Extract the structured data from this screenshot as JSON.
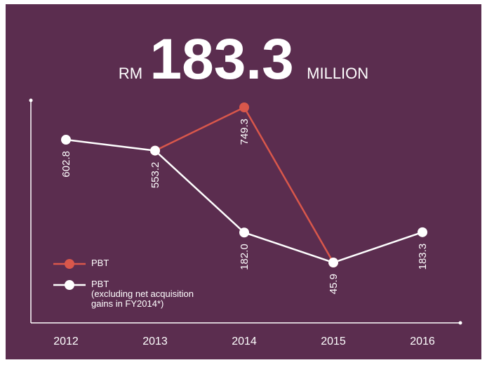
{
  "chart_data": {
    "type": "line",
    "headline": {
      "prefix": "RM",
      "figure": "183.3",
      "suffix": "MILLION"
    },
    "categories": [
      "2012",
      "2013",
      "2014",
      "2015",
      "2016"
    ],
    "series": [
      {
        "name": "PBT",
        "color": "#d9574b",
        "values": [
          null,
          553.2,
          749.3,
          45.9,
          null
        ],
        "value_labels": [
          null,
          null,
          "749.3",
          null,
          null
        ]
      },
      {
        "name": "PBT\n(excluding net acquisition\ngains in FY2014*)",
        "color": "#ffffff",
        "values": [
          602.8,
          553.2,
          182.0,
          45.9,
          183.3
        ],
        "value_labels": [
          "602.8",
          "553.2",
          "182.0",
          "45.9",
          "183.3"
        ]
      }
    ],
    "background": "#5b2d4f"
  }
}
